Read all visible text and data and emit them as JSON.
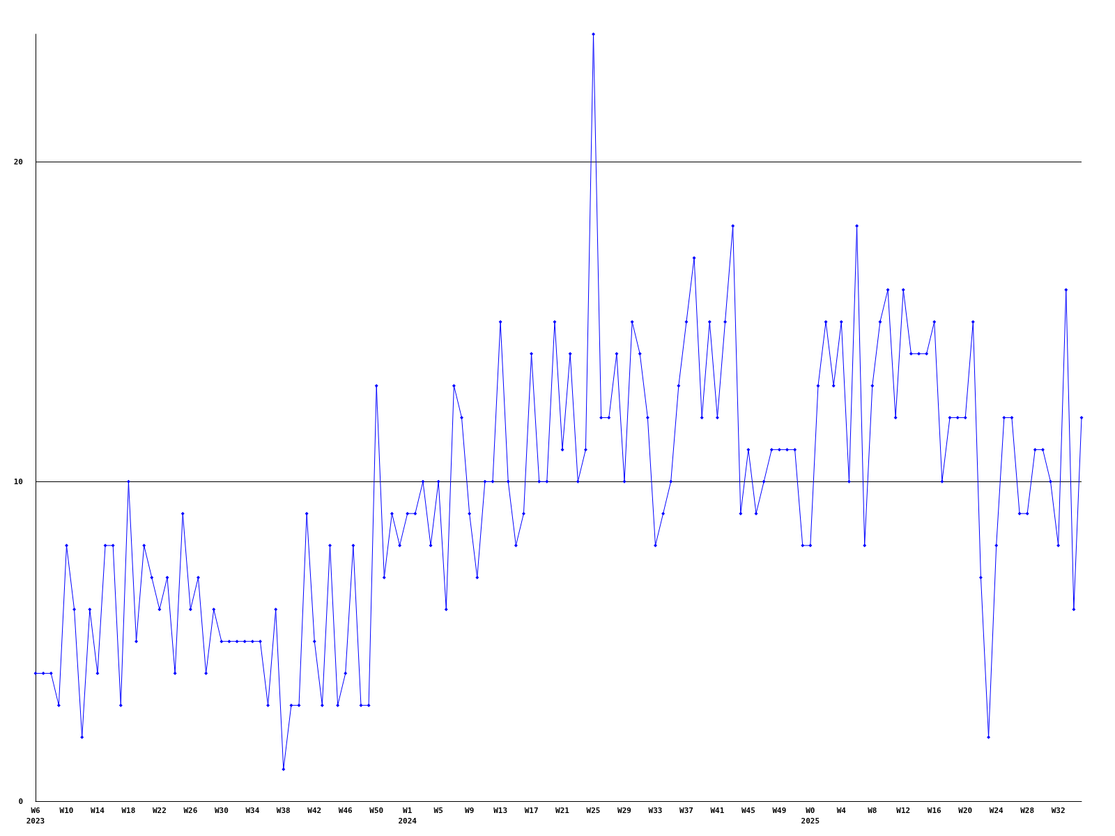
{
  "chart_data": {
    "type": "line",
    "categories": [
      "W6\n2023",
      null,
      null,
      null,
      "W10",
      null,
      null,
      null,
      "W14",
      null,
      null,
      null,
      "W18",
      null,
      null,
      null,
      "W22",
      null,
      null,
      null,
      "W26",
      null,
      null,
      null,
      "W30",
      null,
      null,
      null,
      "W34",
      null,
      null,
      null,
      "W38",
      null,
      null,
      null,
      "W42",
      null,
      null,
      null,
      "W46",
      null,
      null,
      null,
      "W50",
      null,
      null,
      null,
      "W1\n2024",
      null,
      null,
      null,
      "W5",
      null,
      null,
      null,
      "W9",
      null,
      null,
      null,
      "W13",
      null,
      null,
      null,
      "W17",
      null,
      null,
      null,
      "W21",
      null,
      null,
      null,
      "W25",
      null,
      null,
      null,
      "W29",
      null,
      null,
      null,
      "W33",
      null,
      null,
      null,
      "W37",
      null,
      null,
      null,
      "W41",
      null,
      null,
      null,
      "W45",
      null,
      null,
      null,
      "W49",
      null,
      null,
      null,
      "W0\n2025",
      null,
      null,
      null,
      "W4",
      null,
      null,
      null,
      "W8",
      null,
      null,
      null,
      "W12",
      null,
      null,
      null,
      "W16",
      null,
      null,
      null,
      "W20",
      null,
      null,
      null,
      "W24",
      null,
      null,
      null,
      "W28",
      null,
      null,
      null,
      "W32",
      null,
      null,
      null
    ],
    "series": [
      {
        "color": "#0000ff",
        "values": [
          4,
          4,
          4,
          3,
          8,
          6,
          2,
          6,
          4,
          8,
          8,
          3,
          10,
          5,
          8,
          7,
          6,
          7,
          4,
          9,
          6,
          7,
          4,
          6,
          5,
          5,
          5,
          5,
          5,
          5,
          3,
          6,
          1,
          3,
          3,
          9,
          5,
          3,
          8,
          3,
          4,
          8,
          3,
          3,
          13,
          7,
          9,
          8,
          9,
          9,
          10,
          8,
          10,
          6,
          13,
          12,
          9,
          7,
          10,
          10,
          15,
          10,
          8,
          9,
          14,
          10,
          10,
          15,
          11,
          14,
          10,
          11,
          24,
          12,
          12,
          14,
          10,
          15,
          14,
          12,
          8,
          9,
          10,
          13,
          15,
          17,
          12,
          15,
          12,
          15,
          18,
          9,
          11,
          9,
          10,
          11,
          11,
          11,
          11,
          8,
          8,
          13,
          15,
          13,
          15,
          10,
          18,
          8,
          13,
          15,
          16,
          12,
          16,
          14,
          14,
          14,
          15,
          10,
          12,
          12,
          12,
          15,
          7,
          2,
          8,
          12,
          12,
          9,
          9,
          11,
          11,
          10,
          8,
          16,
          6,
          12
        ]
      }
    ],
    "ylim": [
      0,
      24
    ],
    "yticks": [
      0,
      10,
      20
    ],
    "grid": "y",
    "marker": "diamond",
    "line_style": "solid"
  }
}
